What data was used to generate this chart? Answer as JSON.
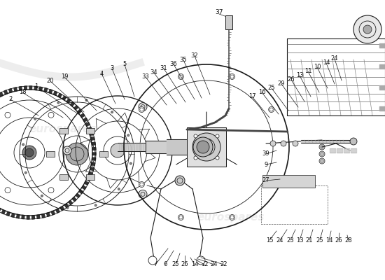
{
  "bg_color": "#ffffff",
  "line_color": "#1a1a1a",
  "text_color": "#111111",
  "watermark_color": "#cccccc",
  "watermark_alpha": 0.35,
  "figsize": [
    5.5,
    4.0
  ],
  "dpi": 100
}
